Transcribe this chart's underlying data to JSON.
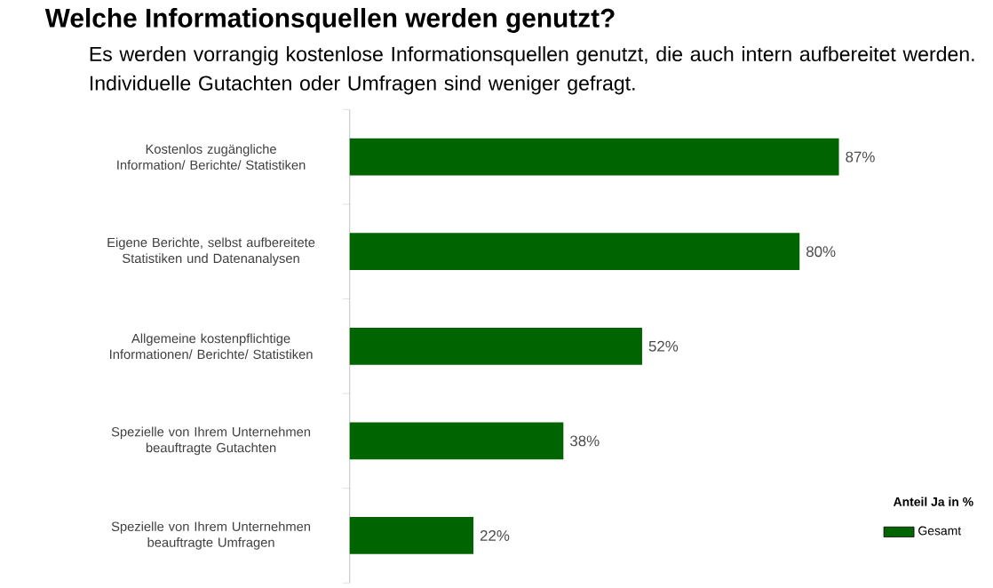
{
  "chart_data": {
    "type": "bar",
    "orientation": "horizontal",
    "title": "Welche Informationsquellen werden genutzt?",
    "subtitle": "Es werden vorrangig kostenlose Informationsquellen genutzt, die auch intern aufbereitet werden. Individuelle Gutachten oder Umfragen sind weniger gefragt.",
    "categories": [
      "Kostenlos zugängliche Information/ Berichte/ Statistiken",
      "Eigene Berichte, selbst aufbereitete Statistiken und Datenanalysen",
      "Allgemeine kostenpflichtige Informationen/ Berichte/ Statistiken",
      "Spezielle von Ihrem Unternehmen beauftragte Gutachten",
      "Spezielle von Ihrem Unternehmen beauftragte Umfragen"
    ],
    "series": [
      {
        "name": "Gesamt",
        "color": "#006400",
        "values": [
          87,
          80,
          52,
          38,
          22
        ],
        "value_labels": [
          "87%",
          "80%",
          "52%",
          "38%",
          "22%"
        ]
      }
    ],
    "legend_title": "Anteil Ja in %",
    "legend": "bottom right"
  }
}
